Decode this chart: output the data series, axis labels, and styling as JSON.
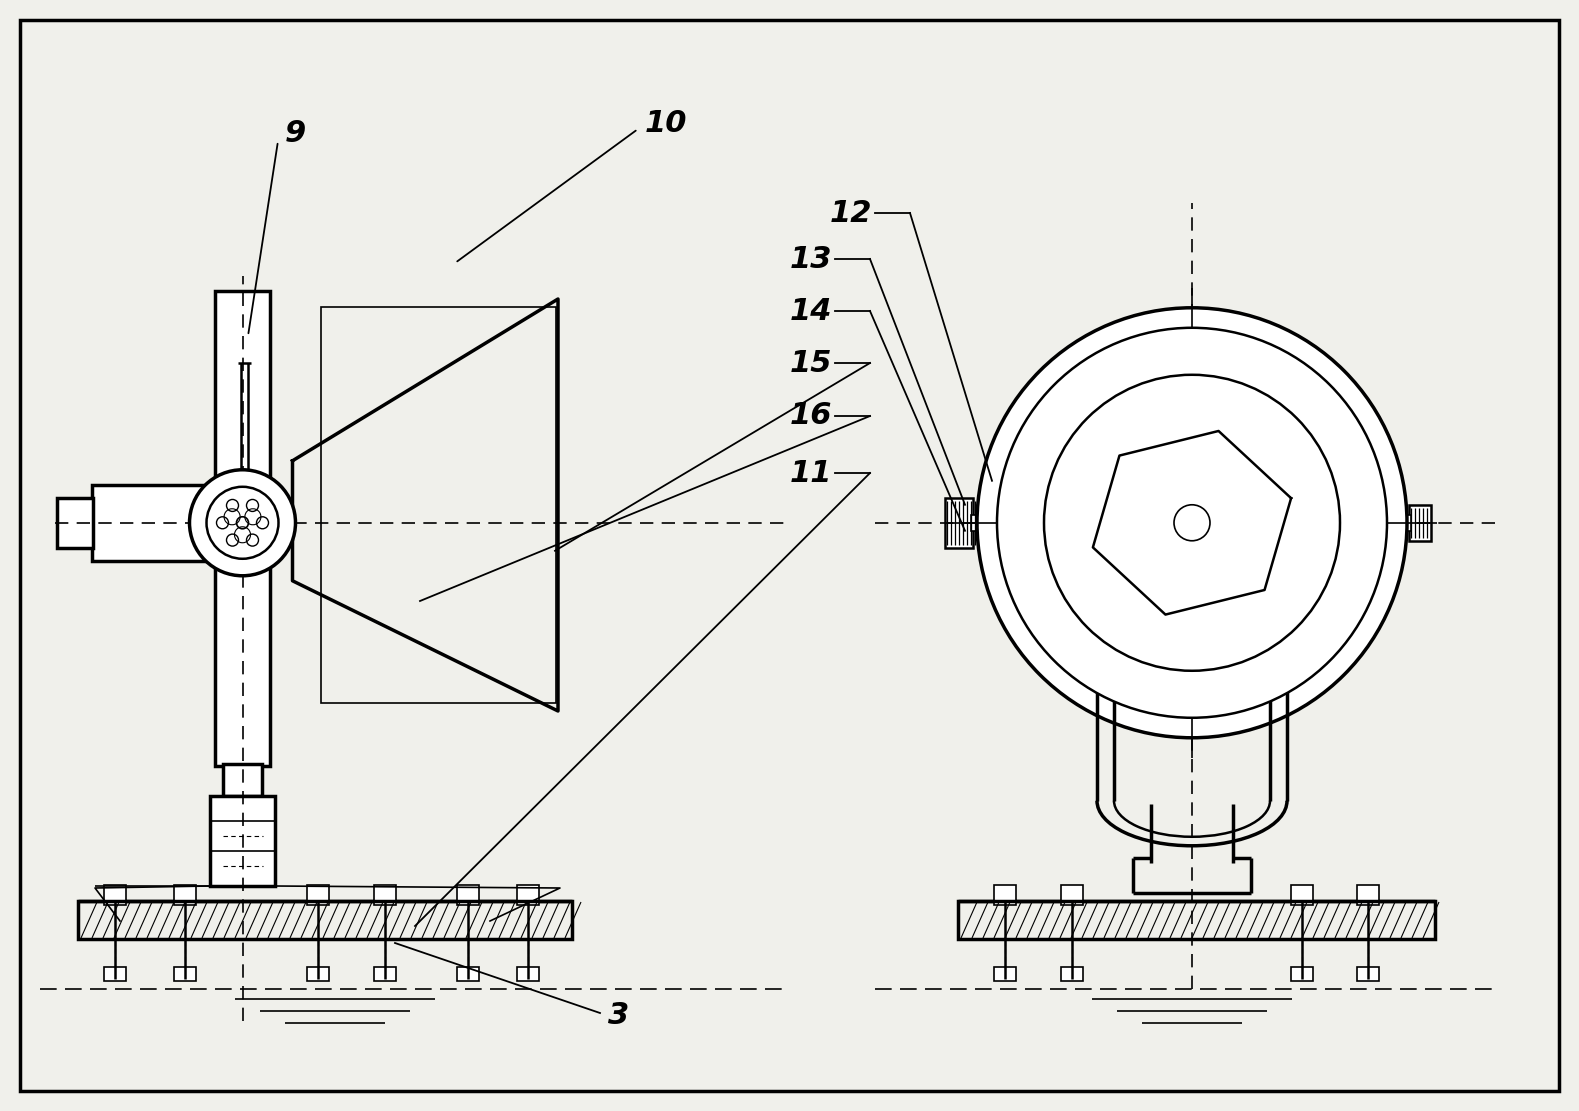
{
  "bg_color": "#f0f0eb",
  "line_color": "#000000",
  "label_fontsize": 22,
  "lw_thick": 2.5,
  "lw_med": 1.8,
  "lw_thin": 1.2
}
